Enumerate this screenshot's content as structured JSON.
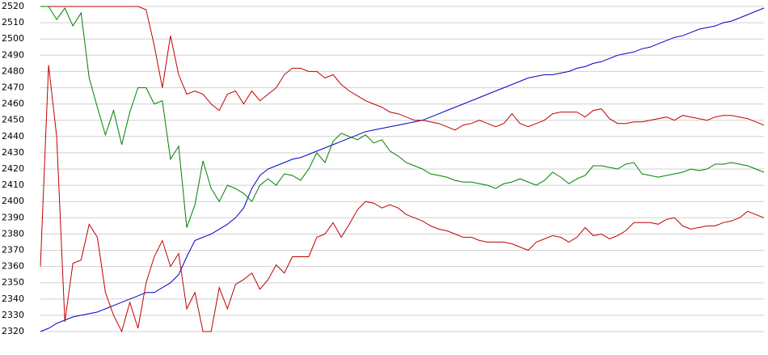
{
  "chart_data": {
    "type": "line",
    "categories": [
      null,
      null,
      null,
      null,
      null,
      null,
      null,
      null,
      null,
      null,
      null,
      null,
      null,
      null,
      null,
      null,
      null,
      null,
      null,
      null,
      null,
      null,
      null,
      null,
      null,
      null,
      null,
      null,
      null,
      null,
      null,
      null,
      null,
      null,
      null,
      null,
      null,
      null,
      null,
      null,
      null,
      null,
      null,
      null,
      null,
      null,
      null,
      null,
      null,
      null,
      null,
      null,
      null,
      null,
      null,
      null,
      null,
      null,
      null,
      null,
      null,
      null,
      null,
      null,
      null,
      null,
      null,
      null,
      null,
      null,
      null,
      null,
      null,
      null,
      null,
      null,
      null,
      null,
      null,
      null,
      null,
      null,
      null,
      null,
      null,
      null,
      null,
      null,
      null,
      null
    ],
    "series": [
      {
        "color": "#0000c0",
        "values": [
          2320,
          2322,
          2325,
          2327,
          2329,
          2330,
          2331,
          2332,
          2334,
          2336,
          2338,
          2340,
          2342,
          2344,
          2344,
          2347,
          2350,
          2355,
          2366,
          2376,
          2378,
          2380,
          2383,
          2386,
          2390,
          2396,
          2408,
          2416,
          2420,
          2422,
          2424,
          2426,
          2427,
          2429,
          2431,
          2433,
          2435,
          2437,
          2439,
          2441,
          2443,
          2444,
          2445,
          2446,
          2447,
          2448,
          2449,
          2450,
          2452,
          2454,
          2456,
          2458,
          2460,
          2462,
          2464,
          2466,
          2468,
          2470,
          2472,
          2474,
          2476,
          2477,
          2478,
          2478,
          2479,
          2480,
          2482,
          2483,
          2485,
          2486,
          2488,
          2490,
          2491,
          2492,
          2494,
          2495,
          2497,
          2499,
          2501,
          2502,
          2504,
          2506,
          2507,
          2508,
          2510,
          2511,
          2513,
          2515,
          2517,
          2519
        ]
      },
      {
        "color": "#c00000",
        "values": [
          2520,
          2520,
          2520,
          2520,
          2520,
          2520,
          2520,
          2520,
          2520,
          2520,
          2520,
          2520,
          2520,
          2518,
          2496,
          2470,
          2502,
          2478,
          2466,
          2468,
          2466,
          2460,
          2456,
          2466,
          2468,
          2460,
          2468,
          2462,
          2466,
          2470,
          2478,
          2482,
          2482,
          2480,
          2480,
          2476,
          2478,
          2472,
          2468,
          2465,
          2462,
          2460,
          2458,
          2455,
          2454,
          2452,
          2450,
          2450,
          2449,
          2448,
          2446,
          2444,
          2447,
          2448,
          2450,
          2448,
          2446,
          2448,
          2454,
          2448,
          2446,
          2448,
          2450,
          2454,
          2455,
          2455,
          2455,
          2452,
          2456,
          2457,
          2451,
          2448,
          2448,
          2449,
          2449,
          2450,
          2451,
          2452,
          2450,
          2453,
          2452,
          2451,
          2450,
          2452,
          2453,
          2453,
          2452,
          2451,
          2449,
          2447
        ]
      },
      {
        "color": "#008000",
        "values": [
          2520,
          2520,
          2512,
          2519,
          2508,
          2516,
          2476,
          2458,
          2441,
          2456,
          2435,
          2455,
          2470,
          2470,
          2460,
          2462,
          2426,
          2434,
          2384,
          2398,
          2425,
          2408,
          2400,
          2410,
          2408,
          2405,
          2400,
          2410,
          2414,
          2410,
          2417,
          2416,
          2413,
          2420,
          2430,
          2424,
          2437,
          2442,
          2440,
          2438,
          2441,
          2436,
          2438,
          2431,
          2428,
          2424,
          2422,
          2420,
          2417,
          2416,
          2415,
          2413,
          2412,
          2412,
          2411,
          2410,
          2408,
          2411,
          2412,
          2414,
          2412,
          2410,
          2413,
          2418,
          2415,
          2411,
          2414,
          2416,
          2422,
          2422,
          2421,
          2420,
          2423,
          2424,
          2417,
          2416,
          2415,
          2416,
          2417,
          2418,
          2420,
          2419,
          2420,
          2423,
          2423,
          2424,
          2423,
          2422,
          2420,
          2418
        ]
      },
      {
        "color": "#c00000",
        "values": [
          2360,
          2484,
          2440,
          2326,
          2362,
          2364,
          2386,
          2378,
          2344,
          2330,
          2320,
          2338,
          2322,
          2350,
          2366,
          2376,
          2360,
          2368,
          2334,
          2344,
          2320,
          2320,
          2347,
          2334,
          2349,
          2352,
          2356,
          2346,
          2352,
          2361,
          2356,
          2366,
          2366,
          2366,
          2378,
          2380,
          2387,
          2378,
          2386,
          2395,
          2400,
          2399,
          2396,
          2398,
          2396,
          2392,
          2390,
          2388,
          2385,
          2383,
          2382,
          2380,
          2378,
          2378,
          2376,
          2375,
          2375,
          2375,
          2374,
          2372,
          2370,
          2375,
          2377,
          2379,
          2378,
          2375,
          2378,
          2384,
          2379,
          2380,
          2377,
          2379,
          2382,
          2387,
          2387,
          2387,
          2386,
          2389,
          2390,
          2385,
          2383,
          2384,
          2385,
          2385,
          2387,
          2388,
          2390,
          2394,
          2392,
          2390
        ]
      }
    ],
    "ylim": [
      2320,
      2520
    ],
    "yticks": [
      2320,
      2330,
      2340,
      2350,
      2360,
      2370,
      2380,
      2390,
      2400,
      2410,
      2420,
      2430,
      2440,
      2450,
      2460,
      2470,
      2480,
      2490,
      2500,
      2510,
      2520
    ],
    "grid": true
  }
}
